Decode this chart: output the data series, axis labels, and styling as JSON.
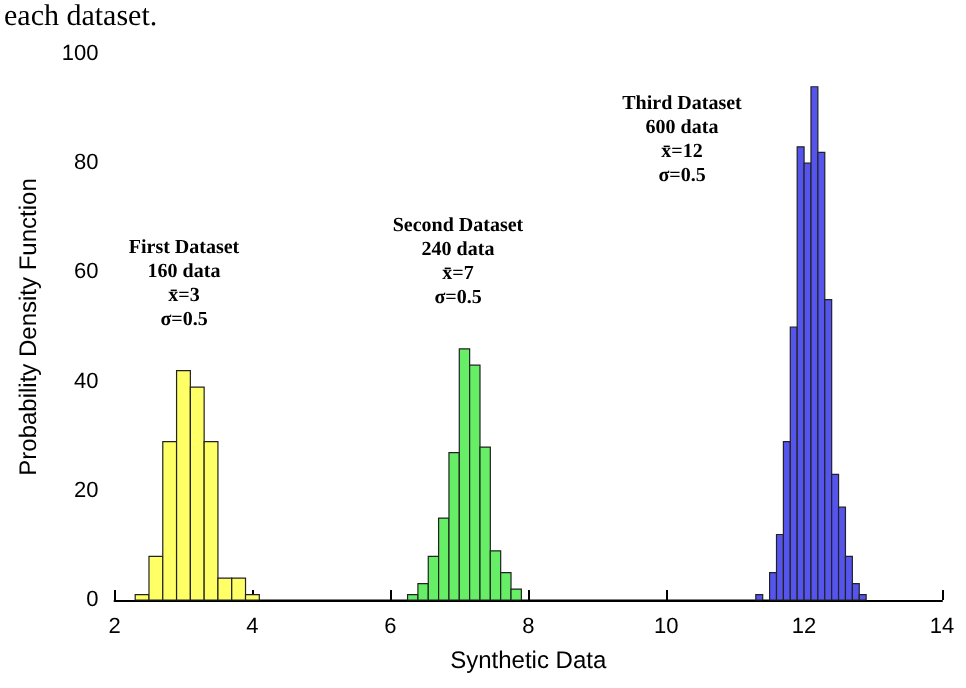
{
  "chart_data": {
    "type": "histogram",
    "xlabel": "Synthetic Data",
    "ylabel": "Probability Density Function",
    "xlim": [
      2,
      14
    ],
    "xticks": [
      2,
      4,
      6,
      8,
      10,
      12,
      14
    ],
    "ylim": [
      0,
      100
    ],
    "yticks": [
      0,
      20,
      40,
      60,
      80,
      100
    ],
    "bins": [
      2.3,
      2.5,
      2.7,
      2.9,
      3.1,
      3.3,
      3.5,
      3.7,
      3.9,
      4.1,
      6.25,
      6.4,
      6.55,
      6.7,
      6.85,
      7.0,
      7.15,
      7.3,
      7.45,
      7.6,
      7.75,
      7.9,
      11.3,
      11.4,
      11.5,
      11.6,
      11.7,
      11.8,
      11.9,
      12.0,
      12.1,
      12.2,
      12.3,
      12.4,
      12.5,
      12.6,
      12.7,
      12.8,
      12.9
    ],
    "values": [
      1,
      8,
      29,
      42,
      39,
      29,
      4,
      4,
      1,
      0,
      1,
      3,
      8,
      15,
      27,
      46,
      43,
      28,
      9,
      5,
      2,
      0,
      1,
      0,
      5,
      12,
      29,
      50,
      83,
      80,
      94,
      82,
      55,
      23,
      17,
      8,
      3,
      1
    ],
    "colors": [
      "#ffff66",
      "#ffff66",
      "#ffff66",
      "#ffff66",
      "#ffff66",
      "#ffff66",
      "#ffff66",
      "#ffff66",
      "#ffff66",
      "#000000",
      "#66ee66",
      "#66ee66",
      "#66ee66",
      "#66ee66",
      "#66ee66",
      "#66ee66",
      "#66ee66",
      "#66ee66",
      "#66ee66",
      "#66ee66",
      "#66ee66",
      "#000000",
      "#5555ee",
      "#000000",
      "#5555ee",
      "#5555ee",
      "#5555ee",
      "#5555ee",
      "#5555ee",
      "#5555ee",
      "#5555ee",
      "#5555ee",
      "#5555ee",
      "#5555ee",
      "#5555ee",
      "#5555ee",
      "#5555ee",
      "#5555ee"
    ],
    "annotations": [
      "each dataset.",
      "First Dataset\n160 data\nx̄=3\nσ=0.5",
      "Second Dataset\n240 data\nx̄=7\nσ=0.5",
      "Third Dataset\n600 data\nx̄=12\nσ=0.5"
    ]
  }
}
